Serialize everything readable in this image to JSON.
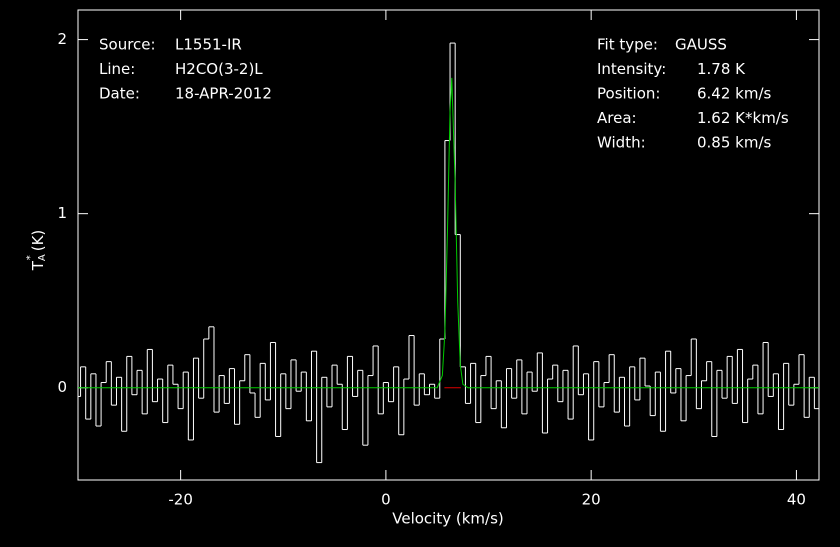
{
  "chart_data": {
    "type": "line",
    "xlabel": "Velocity (km/s)",
    "ylabel": {
      "main": "T",
      "sup": "*",
      "sub": "A",
      "unit": "(K)"
    },
    "info_left": [
      {
        "label": "Source:",
        "value": "L1551-IR"
      },
      {
        "label": "Line:",
        "value": "H2CO(3-2)L"
      },
      {
        "label": "Date:",
        "value": "18-APR-2012"
      }
    ],
    "info_right": [
      {
        "label": "Fit type:",
        "value": "GAUSS"
      },
      {
        "label": "Intensity:",
        "value": "1.78 K"
      },
      {
        "label": "Position:",
        "value": "6.42 km/s"
      },
      {
        "label": "Area:",
        "value": "1.62 K*km/s"
      },
      {
        "label": "Width:",
        "value": "0.85 km/s"
      }
    ],
    "xlim": [
      -30,
      42.2
    ],
    "ylim": [
      -0.53,
      2.17
    ],
    "xticks": [
      -20,
      0,
      20,
      40
    ],
    "yticks": [
      0,
      1,
      2
    ],
    "spectrum": {
      "color": "#ffffff",
      "x": [
        -30,
        -29.5,
        -29,
        -28.5,
        -28,
        -27.5,
        -27,
        -26.5,
        -26,
        -25.5,
        -25,
        -24.5,
        -24,
        -23.5,
        -23,
        -22.5,
        -22,
        -21.5,
        -21,
        -20.5,
        -20,
        -19.5,
        -19,
        -18.5,
        -18,
        -17.5,
        -17,
        -16.5,
        -16,
        -15.5,
        -15,
        -14.5,
        -14,
        -13.5,
        -13,
        -12.5,
        -12,
        -11.5,
        -11,
        -10.5,
        -10,
        -9.5,
        -9,
        -8.5,
        -8,
        -7.5,
        -7,
        -6.5,
        -6,
        -5.5,
        -5,
        -4.5,
        -4,
        -3.5,
        -3,
        -2.5,
        -2,
        -1.5,
        -1,
        -0.5,
        0,
        0.5,
        1,
        1.5,
        2,
        2.5,
        3,
        3.5,
        4,
        4.5,
        5,
        5.5,
        6,
        6.5,
        7,
        7.5,
        8,
        8.5,
        9,
        9.5,
        10,
        10.5,
        11,
        11.5,
        12,
        12.5,
        13,
        13.5,
        14,
        14.5,
        15,
        15.5,
        16,
        16.5,
        17,
        17.5,
        18,
        18.5,
        19,
        19.5,
        20,
        20.5,
        21,
        21.5,
        22,
        22.5,
        23,
        23.5,
        24,
        24.5,
        25,
        25.5,
        26,
        26.5,
        27,
        27.5,
        28,
        28.5,
        29,
        29.5,
        30,
        30.5,
        31,
        31.5,
        32,
        32.5,
        33,
        33.5,
        34,
        34.5,
        35,
        35.5,
        36,
        36.5,
        37,
        37.5,
        38,
        38.5,
        39,
        39.5,
        40,
        40.5,
        41,
        41.5,
        42
      ],
      "values": [
        -0.05,
        0.12,
        -0.18,
        0.08,
        -0.22,
        0.03,
        0.15,
        -0.1,
        0.06,
        -0.25,
        0.18,
        -0.04,
        0.1,
        -0.15,
        0.22,
        -0.08,
        0.05,
        -0.2,
        0.13,
        0.02,
        -0.12,
        0.09,
        -0.3,
        0.17,
        -0.06,
        0.28,
        0.35,
        -0.14,
        0.07,
        -0.09,
        0.11,
        -0.21,
        0.04,
        0.19,
        -0.03,
        -0.17,
        0.14,
        -0.07,
        0.26,
        -0.28,
        0.08,
        -0.12,
        0.16,
        -0.02,
        0.09,
        -0.19,
        0.21,
        -0.43,
        0.06,
        -0.11,
        0.13,
        0.02,
        -0.24,
        0.18,
        -0.05,
        0.1,
        -0.33,
        0.07,
        0.24,
        -0.15,
        0.03,
        -0.08,
        0.12,
        -0.27,
        0.05,
        0.3,
        -0.1,
        0.08,
        -0.04,
        0.02,
        -0.06,
        0.28,
        1.42,
        1.98,
        0.88,
        0.12,
        -0.09,
        0.14,
        -0.2,
        0.07,
        0.18,
        -0.12,
        0.04,
        -0.23,
        0.11,
        -0.06,
        0.16,
        -0.15,
        0.09,
        -0.02,
        0.2,
        -0.26,
        0.05,
        0.13,
        -0.08,
        0.1,
        -0.18,
        0.24,
        -0.04,
        0.08,
        -0.3,
        0.15,
        -0.11,
        0.03,
        0.19,
        -0.14,
        0.06,
        -0.22,
        0.12,
        -0.07,
        0.17,
        0.01,
        -0.16,
        0.09,
        -0.25,
        0.21,
        -0.03,
        0.11,
        -0.19,
        0.07,
        0.28,
        -0.12,
        0.04,
        0.15,
        -0.28,
        0.1,
        -0.06,
        0.18,
        -0.09,
        0.22,
        -0.2,
        0.05,
        0.13,
        -0.15,
        0.26,
        -0.05,
        0.08,
        -0.24,
        0.14,
        -0.1,
        0.02,
        0.19,
        -0.17,
        0.06,
        -0.12
      ]
    },
    "fit": {
      "color": "#00cc00",
      "x": [
        -30,
        5,
        5.5,
        5.75,
        6,
        6.25,
        6.42,
        6.75,
        7,
        7.25,
        7.5,
        8,
        42.2
      ],
      "values": [
        0,
        0,
        0.07,
        0.32,
        0.9,
        1.59,
        1.78,
        1.17,
        0.49,
        0.13,
        0.02,
        0,
        0
      ]
    },
    "fit_window": {
      "color": "#dd0000",
      "x": [
        5.7,
        7.3
      ]
    }
  }
}
